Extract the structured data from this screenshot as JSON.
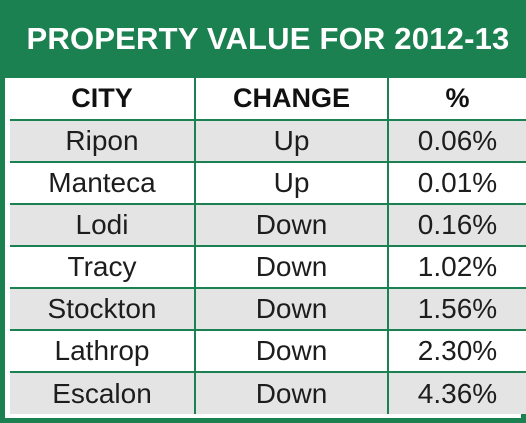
{
  "title": "PROPERTY VALUE FOR 2012-13",
  "columns": [
    "CITY",
    "CHANGE",
    "%"
  ],
  "rows": [
    {
      "city": "Ripon",
      "change": "Up",
      "pct": "0.06%"
    },
    {
      "city": "Manteca",
      "change": "Up",
      "pct": "0.01%"
    },
    {
      "city": "Lodi",
      "change": "Down",
      "pct": "0.16%"
    },
    {
      "city": "Tracy",
      "change": "Down",
      "pct": "1.02%"
    },
    {
      "city": "Stockton",
      "change": "Down",
      "pct": "1.56%"
    },
    {
      "city": "Lathrop",
      "change": "Down",
      "pct": "2.30%"
    },
    {
      "city": "Escalon",
      "change": "Down",
      "pct": "4.36%"
    }
  ],
  "colors": {
    "accent": "#1c8150",
    "row_shaded": "#e4e4e4",
    "row_plain": "#ffffff",
    "title_text": "#ffffff"
  }
}
